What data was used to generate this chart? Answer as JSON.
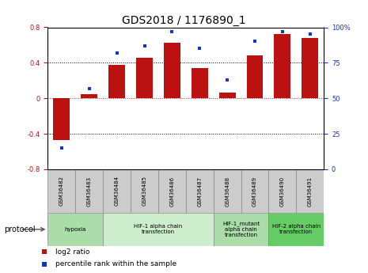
{
  "title": "GDS2018 / 1176890_1",
  "samples": [
    "GSM36482",
    "GSM36483",
    "GSM36484",
    "GSM36485",
    "GSM36486",
    "GSM36487",
    "GSM36488",
    "GSM36489",
    "GSM36490",
    "GSM36491"
  ],
  "log2_ratio": [
    -0.47,
    0.05,
    0.38,
    0.46,
    0.63,
    0.34,
    0.06,
    0.48,
    0.72,
    0.68
  ],
  "percentile": [
    15,
    57,
    82,
    87,
    97,
    85,
    63,
    90,
    97,
    95
  ],
  "ylim": [
    -0.8,
    0.8
  ],
  "y2lim": [
    0,
    100
  ],
  "yticks": [
    -0.8,
    -0.4,
    0.0,
    0.4,
    0.8
  ],
  "y2ticks": [
    0,
    25,
    50,
    75,
    100
  ],
  "bar_color": "#bb1111",
  "dot_color": "#1133cc",
  "plot_bg": "#ffffff",
  "zero_line_color": "#cc2222",
  "protocol_groups": [
    {
      "label": "hypoxia",
      "start": 0,
      "end": 1,
      "color": "#aaddaa"
    },
    {
      "label": "HIF-1 alpha chain\ntransfection",
      "start": 2,
      "end": 5,
      "color": "#cceecc"
    },
    {
      "label": "HIF-1_mutant\nalpha chain\ntransfection",
      "start": 6,
      "end": 7,
      "color": "#aaddaa"
    },
    {
      "label": "HIF-2 alpha chain\ntransfection",
      "start": 8,
      "end": 9,
      "color": "#66cc66"
    }
  ],
  "legend_items": [
    {
      "label": "log2 ratio",
      "color": "#bb1111"
    },
    {
      "label": "percentile rank within the sample",
      "color": "#1133cc"
    }
  ],
  "protocol_label": "protocol",
  "title_fontsize": 10,
  "tick_fontsize": 6,
  "bar_fontsize": 6
}
